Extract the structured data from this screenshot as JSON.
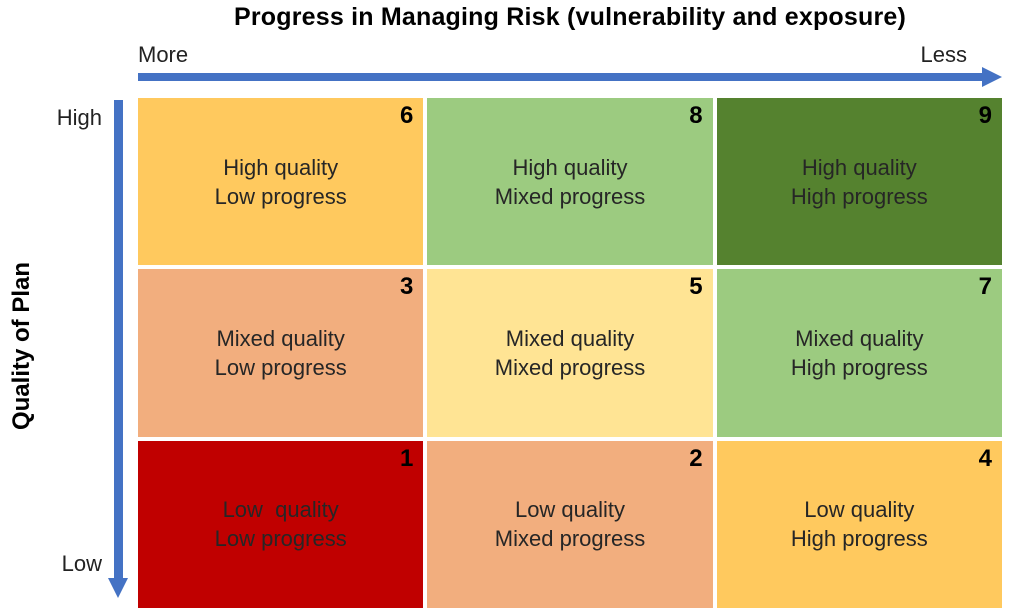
{
  "title": "Progress in Managing Risk (vulnerability and exposure)",
  "x_axis": {
    "label_left": "More",
    "label_right": "Less"
  },
  "y_axis": {
    "title": "Quality of Plan",
    "label_top": "High",
    "label_bottom": "Low"
  },
  "colors": {
    "arrow": "#4472C4",
    "cell_text": "#262626",
    "number_text": "#000000"
  },
  "grid": {
    "rows": [
      "High quality",
      "Mixed quality",
      "Low quality"
    ],
    "columns": [
      "Low progress",
      "Mixed progress",
      "High progress"
    ],
    "cells": [
      {
        "number": "6",
        "line1": "High quality",
        "line2": "Low progress",
        "color": "#FFC95E"
      },
      {
        "number": "8",
        "line1": "High quality",
        "line2": "Mixed progress",
        "color": "#9CCB80"
      },
      {
        "number": "9",
        "line1": "High quality",
        "line2": "High progress",
        "color": "#55822F"
      },
      {
        "number": "3",
        "line1": "Mixed quality",
        "line2": "Low progress",
        "color": "#F2AE7E"
      },
      {
        "number": "5",
        "line1": "Mixed quality",
        "line2": "Mixed progress",
        "color": "#FFE494"
      },
      {
        "number": "7",
        "line1": "Mixed quality",
        "line2": "High progress",
        "color": "#9CCB80"
      },
      {
        "number": "1",
        "line1": "Low  quality",
        "line2": "Low progress",
        "color": "#C00000"
      },
      {
        "number": "2",
        "line1": "Low quality",
        "line2": "Mixed progress",
        "color": "#F2AE7E"
      },
      {
        "number": "4",
        "line1": "Low quality",
        "line2": "High progress",
        "color": "#FFC95E"
      }
    ]
  }
}
